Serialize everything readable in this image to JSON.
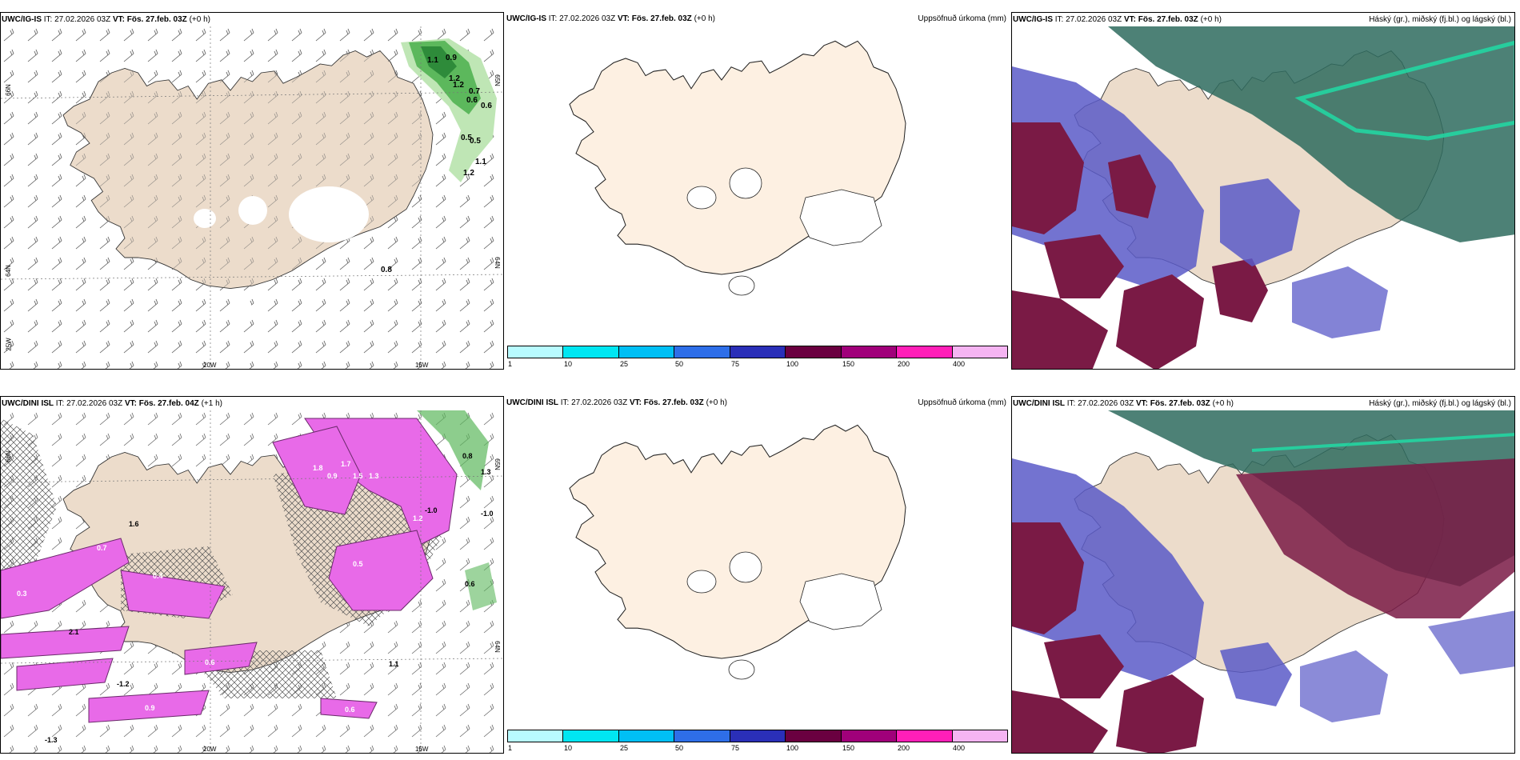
{
  "panels": [
    {
      "model_label": "UWC/IG-IS",
      "it_label": "IT: 27.02.2026 03Z",
      "vt_label": "VT: Fös. 27.feb. 03Z",
      "lead_label": "(+0 h)",
      "right_title": "",
      "axis": {
        "lat_left": "66N",
        "lat_left2": "64N",
        "lon_left": "25W",
        "lon_mid": "20W",
        "lon_right": "15W",
        "lat_right": "65N",
        "lat_right2": "64N"
      },
      "values": [
        "1.1",
        "0.9",
        "1.2",
        "1.2",
        "0.7",
        "0.6",
        "0.6",
        "0.5",
        "0.5",
        "1.1",
        "1.2",
        "0.8"
      ]
    },
    {
      "model_label": "UWC/IG-IS",
      "it_label": "IT: 27.02.2026 03Z",
      "vt_label": "VT: Fös. 27.feb. 03Z",
      "lead_label": "(+0 h)",
      "right_title": "Uppsöfnuð úrkoma (mm)",
      "colorbar": {
        "colors": [
          "#b8fbff",
          "#00e6f2",
          "#00bff5",
          "#2e6ee8",
          "#2a2fb8",
          "#6a0040",
          "#a0007a",
          "#ff1fb8",
          "#f5b4f2"
        ],
        "ticks": [
          "1",
          "10",
          "25",
          "50",
          "75",
          "100",
          "150",
          "200",
          "400"
        ]
      }
    },
    {
      "model_label": "UWC/IG-IS",
      "it_label": "IT: 27.02.2026 03Z",
      "vt_label": "VT: Fös. 27.feb. 03Z",
      "lead_label": "(+0 h)",
      "right_title": "Háský (gr.), miðský (fj.bl.) og lágský (bl.)"
    },
    {
      "model_label": "UWC/DINI ISL",
      "it_label": "IT: 27.02.2026 03Z",
      "vt_label": "VT: Fös. 27.feb. 04Z",
      "lead_label": "(+1 h)",
      "right_title": "",
      "axis": {
        "lat_left": "66N",
        "lat_left2": "64N",
        "lon_left": "25W",
        "lon_mid": "20W",
        "lon_right": "15W",
        "lat_right": "65N",
        "lat_right2": "64N"
      },
      "values": [
        "1.3",
        "0.8",
        "1.7",
        "1.8",
        "0.9",
        "1.5",
        "1.3",
        "0.6",
        "1.6",
        "0.4",
        "0.7",
        "0.5",
        "2.1",
        "1.2",
        "-1.0",
        "-1.0",
        "-1.2",
        "-1.3",
        "0.3",
        "0.9",
        "0.6",
        "0.6",
        "1.1"
      ]
    },
    {
      "model_label": "UWC/DINI ISL",
      "it_label": "IT: 27.02.2026 03Z",
      "vt_label": "VT: Fös. 27.feb. 03Z",
      "lead_label": "(+0 h)",
      "right_title": "Uppsöfnuð úrkoma (mm)",
      "colorbar": {
        "colors": [
          "#b8fbff",
          "#00e6f2",
          "#00bff5",
          "#2e6ee8",
          "#2a2fb8",
          "#6a0040",
          "#a0007a",
          "#ff1fb8",
          "#f5b4f2"
        ],
        "ticks": [
          "1",
          "10",
          "25",
          "50",
          "75",
          "100",
          "150",
          "200",
          "400"
        ]
      }
    },
    {
      "model_label": "UWC/DINI ISL",
      "it_label": "IT: 27.02.2026 03Z",
      "vt_label": "VT: Fös. 27.feb. 03Z",
      "lead_label": "(+0 h)",
      "right_title": "Háský (gr.), miðský (fj.bl.) og lágský (bl.)"
    }
  ],
  "colors": {
    "land": "#ecdccb",
    "land_precip": "#fdf0e2",
    "low_cloud": "#7a1a45",
    "mid_cloud": "#5a5ac8",
    "high_cloud": "#2e6b5e",
    "precip_light": "#e86ae8",
    "precip_green": "#3fae4a"
  }
}
